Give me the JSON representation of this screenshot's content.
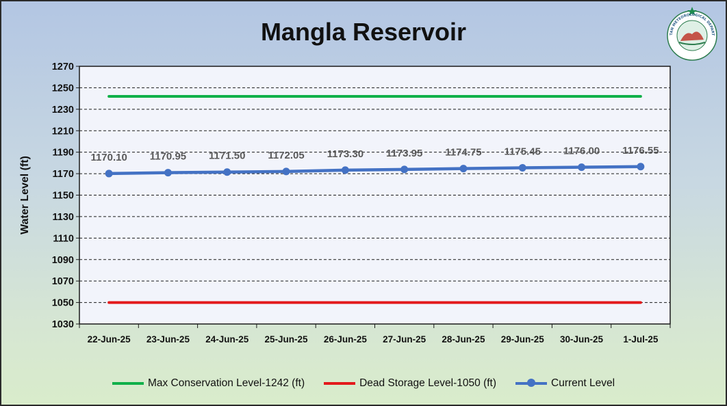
{
  "colors": {
    "max": "#10b04a",
    "dead": "#e31a1c",
    "current": "#4472c4",
    "data_label": "#595959",
    "plot_bg": "#f2f4fb"
  },
  "logo": {
    "name": "Pakistan Meteorological Department",
    "arc_text": "PAKISTAN METEOROLOGICAL DEPARTMENT",
    "icon": "pmd-seal-icon"
  },
  "chart_data": {
    "type": "line",
    "title": "Mangla Reservoir",
    "ylabel": "Water Level (ft)",
    "xlabel": "",
    "ylim": [
      1030,
      1270
    ],
    "yticks": [
      1030,
      1050,
      1070,
      1090,
      1110,
      1130,
      1150,
      1170,
      1190,
      1210,
      1230,
      1250,
      1270
    ],
    "grid": "horizontal-dashed",
    "legend_position": "bottom",
    "categories": [
      "22-Jun-25",
      "23-Jun-25",
      "24-Jun-25",
      "25-Jun-25",
      "26-Jun-25",
      "27-Jun-25",
      "28-Jun-25",
      "29-Jun-25",
      "30-Jun-25",
      "1-Jul-25"
    ],
    "series": [
      {
        "name": "Max Conservation Level-1242 (ft)",
        "values": [
          1242,
          1242,
          1242,
          1242,
          1242,
          1242,
          1242,
          1242,
          1242,
          1242
        ],
        "color": "#10b04a",
        "markers": false
      },
      {
        "name": "Dead Storage Level-1050 (ft)",
        "values": [
          1050,
          1050,
          1050,
          1050,
          1050,
          1050,
          1050,
          1050,
          1050,
          1050
        ],
        "color": "#e31a1c",
        "markers": false
      },
      {
        "name": "Current Level",
        "values": [
          1170.1,
          1170.95,
          1171.5,
          1172.05,
          1173.3,
          1173.95,
          1174.75,
          1175.45,
          1176.0,
          1176.55
        ],
        "labels": [
          "1170.10",
          "1170.95",
          "1171.50",
          "1172.05",
          "1173.30",
          "1173.95",
          "1174.75",
          "1175.45",
          "1176.00",
          "1176.55"
        ],
        "color": "#4472c4",
        "markers": true
      }
    ]
  }
}
